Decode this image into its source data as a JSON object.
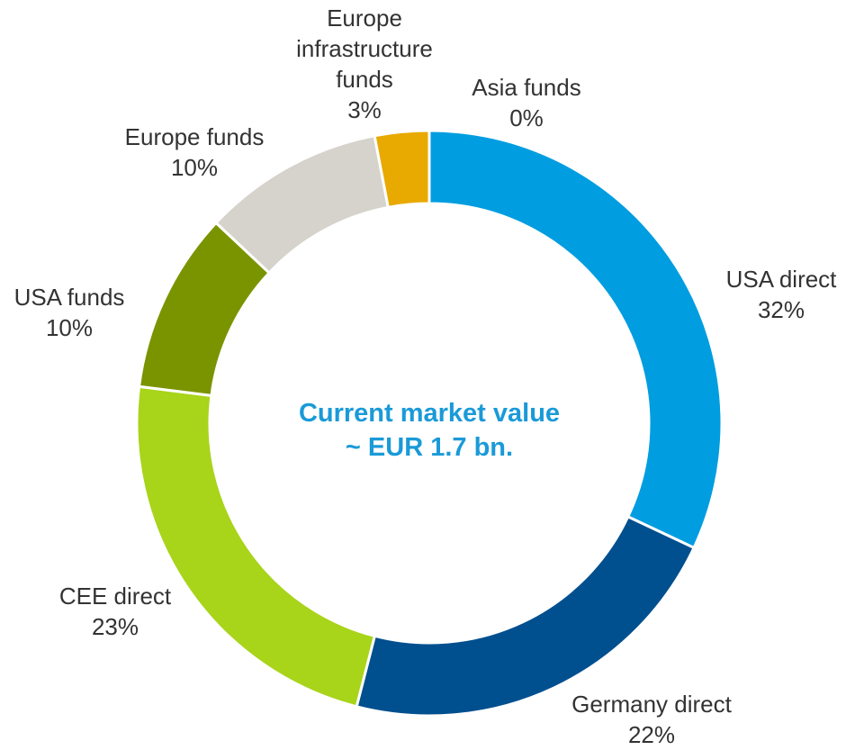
{
  "chart_data": {
    "type": "pie",
    "categories": [
      "USA direct",
      "Germany direct",
      "CEE direct",
      "USA funds",
      "Europe funds",
      "Europe infrastructure funds",
      "Asia funds"
    ],
    "values": [
      32,
      22,
      23,
      10,
      10,
      3,
      0
    ],
    "value_labels": [
      "32%",
      "22%",
      "23%",
      "10%",
      "10%",
      "3%",
      "0%"
    ],
    "colors": [
      "#009de0",
      "#004f8f",
      "#a8d41a",
      "#7a9400",
      "#d6d2cc",
      "#e8a900",
      "#6b2c91"
    ],
    "center_text": [
      "Current market value",
      "~ EUR 1.7 bn."
    ]
  }
}
